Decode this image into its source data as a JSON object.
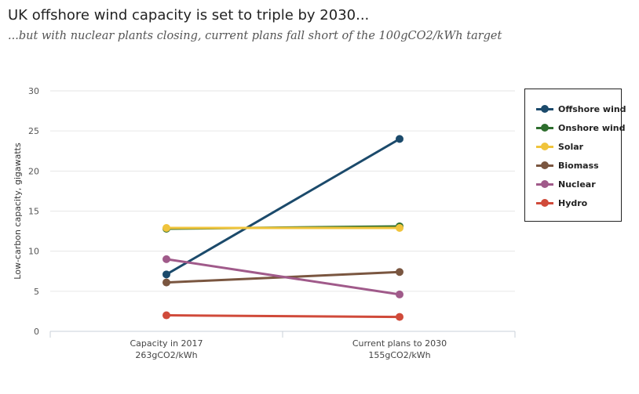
{
  "title": "UK offshore wind capacity is set to triple by 2030...",
  "subtitle": "...but with nuclear plants closing, current plans fall short of the 100gCO2/kWh target",
  "chart_data": {
    "type": "line",
    "ylabel": "Low-carbon capacity, gigawatts",
    "ylim": [
      0,
      30
    ],
    "yticks": [
      "0",
      "5",
      "10",
      "15",
      "20",
      "25",
      "30"
    ],
    "grid": true,
    "legend_position": "right",
    "categories": [
      {
        "line1": "Capacity in 2017",
        "line2": "263gCO2/kWh"
      },
      {
        "line1": "Current plans to 2030",
        "line2": "155gCO2/kWh"
      }
    ],
    "series": [
      {
        "name": "Offshore wind",
        "color": "#1b4a6b",
        "values": [
          7.1,
          24.0
        ]
      },
      {
        "name": "Onshore wind",
        "color": "#2e6e2e",
        "values": [
          12.8,
          13.1
        ]
      },
      {
        "name": "Solar",
        "color": "#f0c43c",
        "values": [
          12.9,
          12.9
        ]
      },
      {
        "name": "Biomass",
        "color": "#7a5640",
        "values": [
          6.1,
          7.4
        ]
      },
      {
        "name": "Nuclear",
        "color": "#a05a8a",
        "values": [
          9.0,
          4.6
        ]
      },
      {
        "name": "Hydro",
        "color": "#d04a3a",
        "values": [
          2.0,
          1.8
        ]
      }
    ]
  }
}
